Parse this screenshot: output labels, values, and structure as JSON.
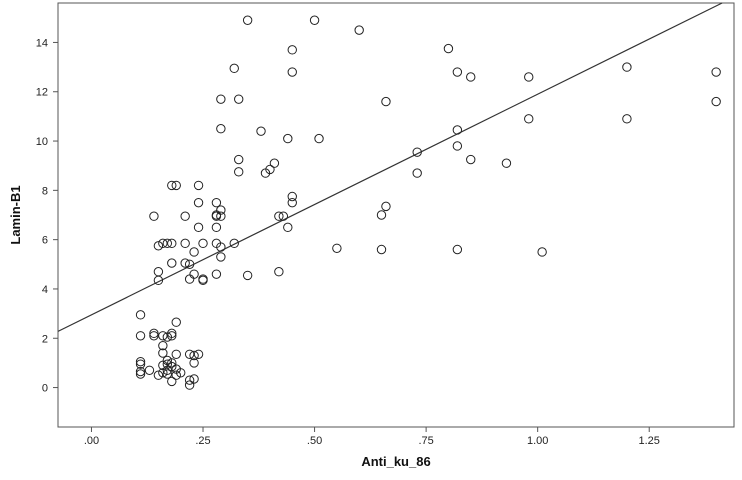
{
  "chart_data": {
    "type": "scatter",
    "title": "",
    "xlabel": "Anti_ku_86",
    "ylabel": "Lamin-B1",
    "xlim": [
      -0.075,
      1.44
    ],
    "ylim": [
      -1.6,
      15.6
    ],
    "x_ticks": [
      {
        "value": 0,
        "label": ".00"
      },
      {
        "value": 0.25,
        "label": ".25"
      },
      {
        "value": 0.5,
        "label": ".50"
      },
      {
        "value": 0.75,
        "label": ".75"
      },
      {
        "value": 1.0,
        "label": "1.00"
      },
      {
        "value": 1.25,
        "label": "1.25"
      }
    ],
    "y_ticks": [
      {
        "value": 0,
        "label": "0"
      },
      {
        "value": 2,
        "label": "2"
      },
      {
        "value": 4,
        "label": "4"
      },
      {
        "value": 6,
        "label": "6"
      },
      {
        "value": 8,
        "label": "8"
      },
      {
        "value": 10,
        "label": "10"
      },
      {
        "value": 12,
        "label": "12"
      },
      {
        "value": 14,
        "label": "14"
      }
    ],
    "grid": false,
    "fit_line": {
      "intercept": 2.95,
      "slope": 8.95
    },
    "points": [
      {
        "x": 0.35,
        "y": 14.9
      },
      {
        "x": 0.5,
        "y": 14.9
      },
      {
        "x": 0.6,
        "y": 14.5
      },
      {
        "x": 0.45,
        "y": 13.7
      },
      {
        "x": 0.32,
        "y": 12.95
      },
      {
        "x": 0.45,
        "y": 12.8
      },
      {
        "x": 0.29,
        "y": 11.7
      },
      {
        "x": 0.33,
        "y": 11.7
      },
      {
        "x": 0.29,
        "y": 10.5
      },
      {
        "x": 0.38,
        "y": 10.4
      },
      {
        "x": 0.44,
        "y": 10.1
      },
      {
        "x": 0.51,
        "y": 10.1
      },
      {
        "x": 0.33,
        "y": 9.25
      },
      {
        "x": 0.41,
        "y": 9.1
      },
      {
        "x": 0.33,
        "y": 8.75
      },
      {
        "x": 0.39,
        "y": 8.7
      },
      {
        "x": 0.4,
        "y": 8.85
      },
      {
        "x": 0.18,
        "y": 8.2
      },
      {
        "x": 0.19,
        "y": 8.2
      },
      {
        "x": 0.24,
        "y": 8.2
      },
      {
        "x": 0.24,
        "y": 7.5
      },
      {
        "x": 0.28,
        "y": 7.5
      },
      {
        "x": 0.45,
        "y": 7.75
      },
      {
        "x": 0.45,
        "y": 7.5
      },
      {
        "x": 0.14,
        "y": 6.95
      },
      {
        "x": 0.21,
        "y": 6.95
      },
      {
        "x": 0.28,
        "y": 7.0
      },
      {
        "x": 0.28,
        "y": 6.95
      },
      {
        "x": 0.29,
        "y": 6.95
      },
      {
        "x": 0.29,
        "y": 7.2
      },
      {
        "x": 0.42,
        "y": 6.95
      },
      {
        "x": 0.43,
        "y": 6.95
      },
      {
        "x": 0.24,
        "y": 6.5
      },
      {
        "x": 0.28,
        "y": 6.5
      },
      {
        "x": 0.44,
        "y": 6.5
      },
      {
        "x": 0.15,
        "y": 5.75
      },
      {
        "x": 0.16,
        "y": 5.85
      },
      {
        "x": 0.17,
        "y": 5.85
      },
      {
        "x": 0.18,
        "y": 5.85
      },
      {
        "x": 0.21,
        "y": 5.85
      },
      {
        "x": 0.25,
        "y": 5.85
      },
      {
        "x": 0.28,
        "y": 5.85
      },
      {
        "x": 0.29,
        "y": 5.7
      },
      {
        "x": 0.32,
        "y": 5.85
      },
      {
        "x": 0.23,
        "y": 5.5
      },
      {
        "x": 0.29,
        "y": 5.3
      },
      {
        "x": 0.18,
        "y": 5.05
      },
      {
        "x": 0.21,
        "y": 5.05
      },
      {
        "x": 0.22,
        "y": 5.0
      },
      {
        "x": 0.15,
        "y": 4.7
      },
      {
        "x": 0.15,
        "y": 4.35
      },
      {
        "x": 0.22,
        "y": 4.4
      },
      {
        "x": 0.23,
        "y": 4.6
      },
      {
        "x": 0.25,
        "y": 4.4
      },
      {
        "x": 0.25,
        "y": 4.35
      },
      {
        "x": 0.28,
        "y": 4.6
      },
      {
        "x": 0.35,
        "y": 4.55
      },
      {
        "x": 0.42,
        "y": 4.7
      },
      {
        "x": 0.55,
        "y": 5.65
      },
      {
        "x": 0.65,
        "y": 5.6
      },
      {
        "x": 0.82,
        "y": 5.6
      },
      {
        "x": 1.01,
        "y": 5.5
      },
      {
        "x": 0.65,
        "y": 7.0
      },
      {
        "x": 0.66,
        "y": 7.35
      },
      {
        "x": 0.66,
        "y": 11.6
      },
      {
        "x": 0.73,
        "y": 9.55
      },
      {
        "x": 0.73,
        "y": 8.7
      },
      {
        "x": 0.8,
        "y": 13.75
      },
      {
        "x": 0.82,
        "y": 12.8
      },
      {
        "x": 0.85,
        "y": 12.6
      },
      {
        "x": 0.82,
        "y": 10.45
      },
      {
        "x": 0.82,
        "y": 9.8
      },
      {
        "x": 0.85,
        "y": 9.25
      },
      {
        "x": 0.93,
        "y": 9.1
      },
      {
        "x": 0.98,
        "y": 12.6
      },
      {
        "x": 0.98,
        "y": 10.9
      },
      {
        "x": 1.2,
        "y": 13.0
      },
      {
        "x": 1.2,
        "y": 10.9
      },
      {
        "x": 1.4,
        "y": 12.8
      },
      {
        "x": 1.4,
        "y": 11.6
      },
      {
        "x": 0.11,
        "y": 2.95
      },
      {
        "x": 0.11,
        "y": 2.1
      },
      {
        "x": 0.14,
        "y": 2.1
      },
      {
        "x": 0.14,
        "y": 2.2
      },
      {
        "x": 0.16,
        "y": 2.1
      },
      {
        "x": 0.17,
        "y": 2.05
      },
      {
        "x": 0.18,
        "y": 2.1
      },
      {
        "x": 0.18,
        "y": 2.2
      },
      {
        "x": 0.19,
        "y": 2.65
      },
      {
        "x": 0.16,
        "y": 1.7
      },
      {
        "x": 0.16,
        "y": 1.4
      },
      {
        "x": 0.17,
        "y": 1.1
      },
      {
        "x": 0.19,
        "y": 1.35
      },
      {
        "x": 0.22,
        "y": 1.35
      },
      {
        "x": 0.23,
        "y": 1.3
      },
      {
        "x": 0.24,
        "y": 1.35
      },
      {
        "x": 0.11,
        "y": 1.05
      },
      {
        "x": 0.11,
        "y": 0.95
      },
      {
        "x": 0.16,
        "y": 0.9
      },
      {
        "x": 0.17,
        "y": 0.95
      },
      {
        "x": 0.18,
        "y": 0.85
      },
      {
        "x": 0.17,
        "y": 0.7
      },
      {
        "x": 0.19,
        "y": 0.75
      },
      {
        "x": 0.2,
        "y": 0.6
      },
      {
        "x": 0.13,
        "y": 0.7
      },
      {
        "x": 0.15,
        "y": 0.5
      },
      {
        "x": 0.11,
        "y": 0.65
      },
      {
        "x": 0.11,
        "y": 0.55
      },
      {
        "x": 0.16,
        "y": 0.6
      },
      {
        "x": 0.17,
        "y": 0.55
      },
      {
        "x": 0.19,
        "y": 0.5
      },
      {
        "x": 0.18,
        "y": 0.25
      },
      {
        "x": 0.22,
        "y": 0.3
      },
      {
        "x": 0.23,
        "y": 0.35
      },
      {
        "x": 0.22,
        "y": 0.1
      },
      {
        "x": 0.23,
        "y": 1.0
      },
      {
        "x": 0.18,
        "y": 1.0
      }
    ]
  }
}
